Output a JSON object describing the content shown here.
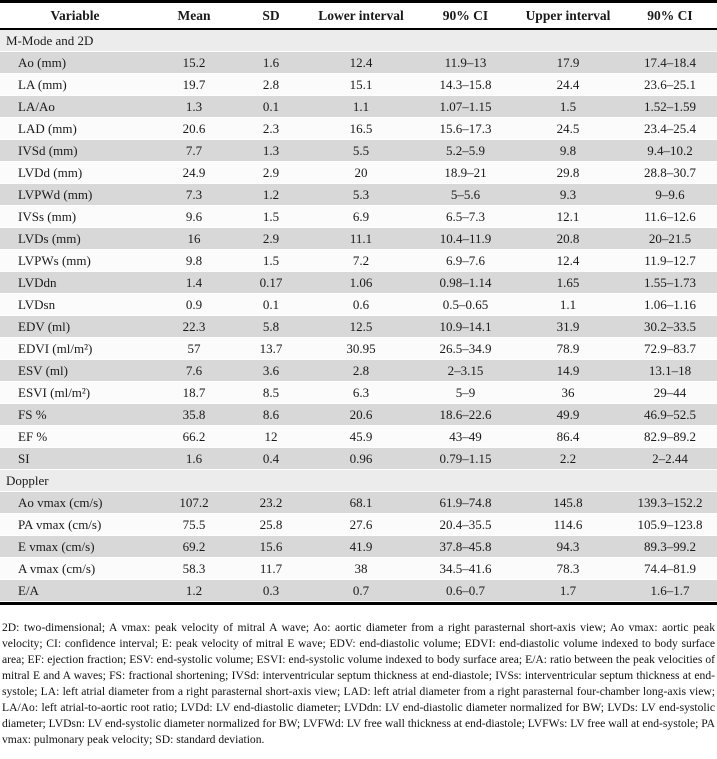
{
  "table": {
    "columns": [
      "Variable",
      "Mean",
      "SD",
      "Lower interval",
      "90% CI",
      "Upper interval",
      "90% CI"
    ],
    "sections": [
      {
        "label": "M-Mode and 2D",
        "rows": [
          {
            "variable": "Ao (mm)",
            "values": [
              "15.2",
              "1.6",
              "12.4",
              "11.9–13",
              "17.9",
              "17.4–18.4"
            ]
          },
          {
            "variable": "LA (mm)",
            "values": [
              "19.7",
              "2.8",
              "15.1",
              "14.3–15.8",
              "24.4",
              "23.6–25.1"
            ]
          },
          {
            "variable": "LA/Ao",
            "values": [
              "1.3",
              "0.1",
              "1.1",
              "1.07–1.15",
              "1.5",
              "1.52–1.59"
            ]
          },
          {
            "variable": "LAD (mm)",
            "values": [
              "20.6",
              "2.3",
              "16.5",
              "15.6–17.3",
              "24.5",
              "23.4–25.4"
            ]
          },
          {
            "variable": "IVSd (mm)",
            "values": [
              "7.7",
              "1.3",
              "5.5",
              "5.2–5.9",
              "9.8",
              "9.4–10.2"
            ]
          },
          {
            "variable": "LVDd (mm)",
            "values": [
              "24.9",
              "2.9",
              "20",
              "18.9–21",
              "29.8",
              "28.8–30.7"
            ]
          },
          {
            "variable": "LVPWd (mm)",
            "values": [
              "7.3",
              "1.2",
              "5.3",
              "5–5.6",
              "9.3",
              "9–9.6"
            ]
          },
          {
            "variable": "IVSs (mm)",
            "values": [
              "9.6",
              "1.5",
              "6.9",
              "6.5–7.3",
              "12.1",
              "11.6–12.6"
            ]
          },
          {
            "variable": "LVDs (mm)",
            "values": [
              "16",
              "2.9",
              "11.1",
              "10.4–11.9",
              "20.8",
              "20–21.5"
            ]
          },
          {
            "variable": "LVPWs (mm)",
            "values": [
              "9.8",
              "1.5",
              "7.2",
              "6.9–7.6",
              "12.4",
              "11.9–12.7"
            ]
          },
          {
            "variable": "LVDdn",
            "values": [
              "1.4",
              "0.17",
              "1.06",
              "0.98–1.14",
              "1.65",
              "1.55–1.73"
            ]
          },
          {
            "variable": "LVDsn",
            "values": [
              "0.9",
              "0.1",
              "0.6",
              "0.5–0.65",
              "1.1",
              "1.06–1.16"
            ]
          },
          {
            "variable": "EDV (ml)",
            "values": [
              "22.3",
              "5.8",
              "12.5",
              "10.9–14.1",
              "31.9",
              "30.2–33.5"
            ]
          },
          {
            "variable": "EDVI (ml/m²)",
            "values": [
              "57",
              "13.7",
              "30.95",
              "26.5–34.9",
              "78.9",
              "72.9–83.7"
            ]
          },
          {
            "variable": "ESV (ml)",
            "values": [
              "7.6",
              "3.6",
              "2.8",
              "2–3.15",
              "14.9",
              "13.1–18"
            ]
          },
          {
            "variable": "ESVI (ml/m²)",
            "values": [
              "18.7",
              "8.5",
              "6.3",
              "5–9",
              "36",
              "29–44"
            ]
          },
          {
            "variable": "FS %",
            "values": [
              "35.8",
              "8.6",
              "20.6",
              "18.6–22.6",
              "49.9",
              "46.9–52.5"
            ]
          },
          {
            "variable": "EF %",
            "values": [
              "66.2",
              "12",
              "45.9",
              "43–49",
              "86.4",
              "82.9–89.2"
            ]
          },
          {
            "variable": "SI",
            "values": [
              "1.6",
              "0.4",
              "0.96",
              "0.79–1.15",
              "2.2",
              "2–2.44"
            ]
          }
        ]
      },
      {
        "label": "Doppler",
        "rows": [
          {
            "variable": "Ao vmax (cm/s)",
            "values": [
              "107.2",
              "23.2",
              "68.1",
              "61.9–74.8",
              "145.8",
              "139.3–152.2"
            ]
          },
          {
            "variable": "PA vmax (cm/s)",
            "values": [
              "75.5",
              "25.8",
              "27.6",
              "20.4–35.5",
              "114.6",
              "105.9–123.8"
            ]
          },
          {
            "variable": "E vmax (cm/s)",
            "values": [
              "69.2",
              "15.6",
              "41.9",
              "37.8–45.8",
              "94.3",
              "89.3–99.2"
            ]
          },
          {
            "variable": "A vmax (cm/s)",
            "values": [
              "58.3",
              "11.7",
              "38",
              "34.5–41.6",
              "78.3",
              "74.4–81.9"
            ]
          },
          {
            "variable": "E/A",
            "values": [
              "1.2",
              "0.3",
              "0.7",
              "0.6–0.7",
              "1.7",
              "1.6–1.7"
            ]
          }
        ]
      }
    ],
    "footnote": "2D: two-dimensional; A vmax: peak velocity of mitral A wave; Ao: aortic diameter from a right parasternal short-axis view; Ao vmax: aortic peak velocity; CI: confidence interval; E: peak velocity of mitral E wave; EDV: end-diastolic volume; EDVI: end-diastolic volume indexed to body surface area; EF: ejection fraction; ESV: end-systolic volume; ESVI: end-systolic volume indexed to body surface area; E/A: ratio between the peak velocities of mitral E and A waves; FS: fractional shortening; IVSd: interventricular septum thickness at end-diastole; IVSs: interventricular septum thickness at end-systole; LA: left atrial diameter from a right parasternal short-axis view; LAD: left atrial diameter from a right parasternal four-chamber long-axis view; LA/Ao: left atrial-to-aortic root ratio; LVDd: LV end-diastolic diameter; LVDdn: LV end-diastolic diameter normalized for BW; LVDs: LV end-systolic diameter; LVDsn: LV end-systolic diameter normalized for BW; LVFWd: LV free wall thickness at end-diastole; LVFWs: LV free wall at end-systole; PA vmax: pulmonary peak velocity; SD: standard deviation."
  },
  "colors": {
    "stripe_gray": "#d8d8d8",
    "section_gray": "#ececec",
    "row_white": "#fbfbfb",
    "rule_black": "#000000"
  }
}
